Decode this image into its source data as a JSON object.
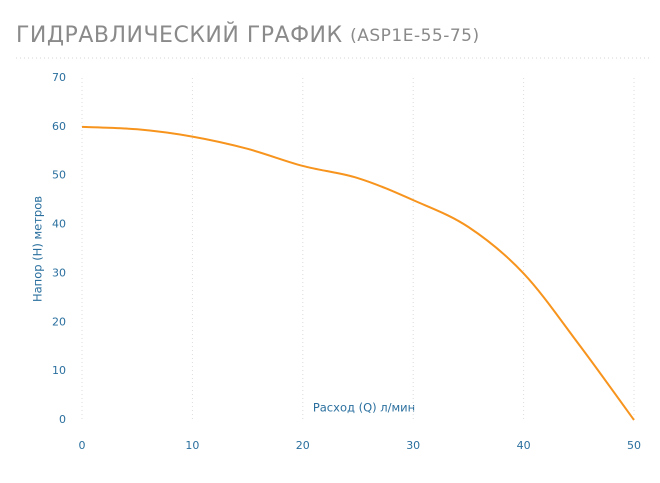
{
  "chart_data": {
    "type": "line",
    "title": "ГИДРАВЛИЧЕСКИЙ ГРАФИК",
    "subtitle": "(ASP1E-55-75)",
    "x_label": "Расход (Q) л/мин",
    "y_label": "Напор (H) метров",
    "x": [
      0,
      5,
      10,
      15,
      20,
      25,
      30,
      35,
      40,
      45,
      50
    ],
    "series": [
      {
        "color": "#f7941d",
        "values": [
          60,
          59.5,
          58,
          55.5,
          52,
          49.5,
          45,
          39.5,
          30,
          15.5,
          0
        ]
      }
    ],
    "xlim": [
      0,
      50
    ],
    "xticks": [
      0,
      10,
      20,
      30,
      40,
      50
    ],
    "ylim": [
      0,
      70
    ],
    "yticks": [
      0,
      10,
      20,
      30,
      40,
      50,
      60,
      70
    ],
    "grid": true
  }
}
